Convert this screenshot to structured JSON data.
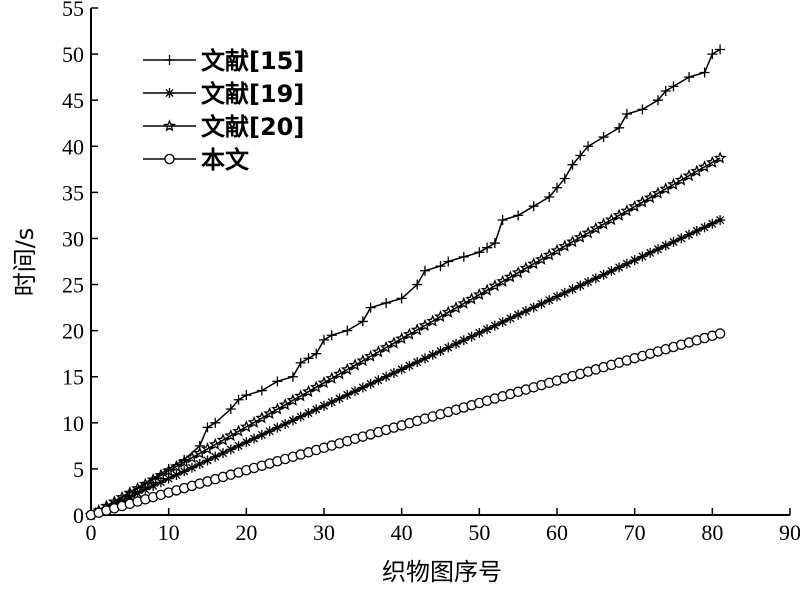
{
  "chart_data": {
    "type": "line",
    "xlabel": "织物图序号",
    "ylabel": "时间/s",
    "xlim": [
      0,
      90
    ],
    "ylim": [
      0,
      55
    ],
    "xticks": [
      "0",
      "10",
      "20",
      "30",
      "40",
      "50",
      "60",
      "70",
      "80",
      "90"
    ],
    "yticks": [
      "0",
      "5",
      "10",
      "15",
      "20",
      "25",
      "30",
      "35",
      "40",
      "45",
      "50",
      "55"
    ],
    "grid": false,
    "legend_position": "top-left",
    "series": [
      {
        "name": "文献[15]",
        "marker": "plus",
        "x": [
          0,
          5,
          10,
          12,
          14,
          15,
          16,
          18,
          19,
          20,
          22,
          24,
          26,
          27,
          28,
          29,
          30,
          31,
          33,
          35,
          36,
          38,
          40,
          42,
          43,
          45,
          46,
          48,
          50,
          51,
          52,
          53,
          55,
          57,
          59,
          60,
          61,
          62,
          63,
          64,
          66,
          68,
          69,
          71,
          73,
          74,
          75,
          77,
          79,
          80,
          81
        ],
        "y": [
          0,
          2.5,
          5.0,
          6.0,
          7.5,
          9.5,
          10.0,
          11.5,
          12.5,
          13.0,
          13.5,
          14.5,
          15.0,
          16.5,
          17.0,
          17.5,
          19.0,
          19.5,
          20.0,
          21.0,
          22.5,
          23.0,
          23.5,
          25.0,
          26.5,
          27.0,
          27.5,
          28.0,
          28.5,
          29.0,
          29.5,
          32.0,
          32.5,
          33.5,
          34.5,
          35.5,
          36.5,
          38.0,
          39.0,
          40.0,
          41.0,
          42.0,
          43.5,
          44.0,
          45.0,
          46.0,
          46.5,
          47.5,
          48.0,
          50.0,
          50.5
        ]
      },
      {
        "name": "文献[19]",
        "marker": "asterisk",
        "slope": 0.395,
        "n": 81
      },
      {
        "name": "文献[20]",
        "marker": "star",
        "slope": 0.478,
        "n": 81
      },
      {
        "name": "本文",
        "marker": "circle",
        "slope": 0.243,
        "n": 81
      }
    ]
  }
}
